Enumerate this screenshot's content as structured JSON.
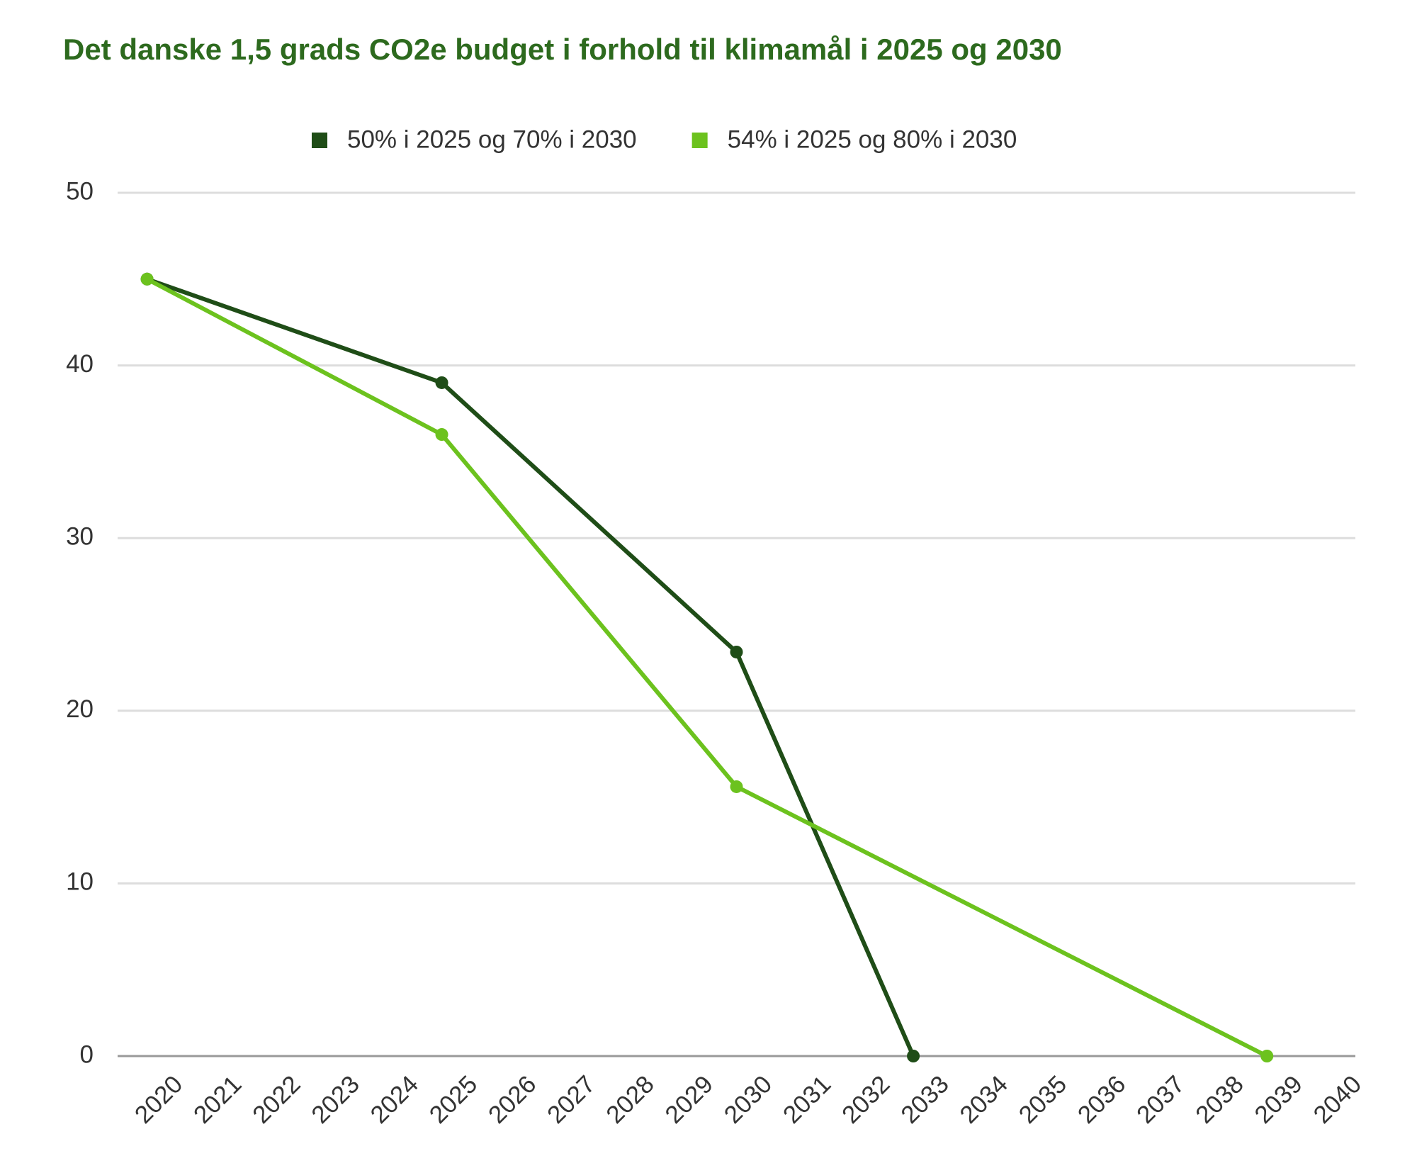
{
  "chart_data": {
    "type": "line",
    "title": "Det danske 1,5 grads CO2e budget i forhold til klimamål i 2025 og 2030",
    "series": [
      {
        "name": "50% i 2025 og 70% i 2030",
        "color": "#1f4d17",
        "x": [
          2020,
          2025,
          2030,
          2033
        ],
        "values": [
          45,
          39,
          23.4,
          0
        ]
      },
      {
        "name": "54% i 2025 og 80% i 2030",
        "color": "#6cc21e",
        "x": [
          2020,
          2025,
          2030,
          2039
        ],
        "values": [
          45,
          36,
          15.6,
          0
        ]
      }
    ],
    "xlim": [
      2019.5,
      2040.5
    ],
    "xticks": [
      2020,
      2021,
      2022,
      2023,
      2024,
      2025,
      2026,
      2027,
      2028,
      2029,
      2030,
      2031,
      2032,
      2033,
      2034,
      2035,
      2036,
      2037,
      2038,
      2039,
      2040
    ],
    "ylim": [
      0,
      50
    ],
    "yticks": [
      0,
      10,
      20,
      30,
      40,
      50
    ],
    "grid": true,
    "legend": "top"
  }
}
